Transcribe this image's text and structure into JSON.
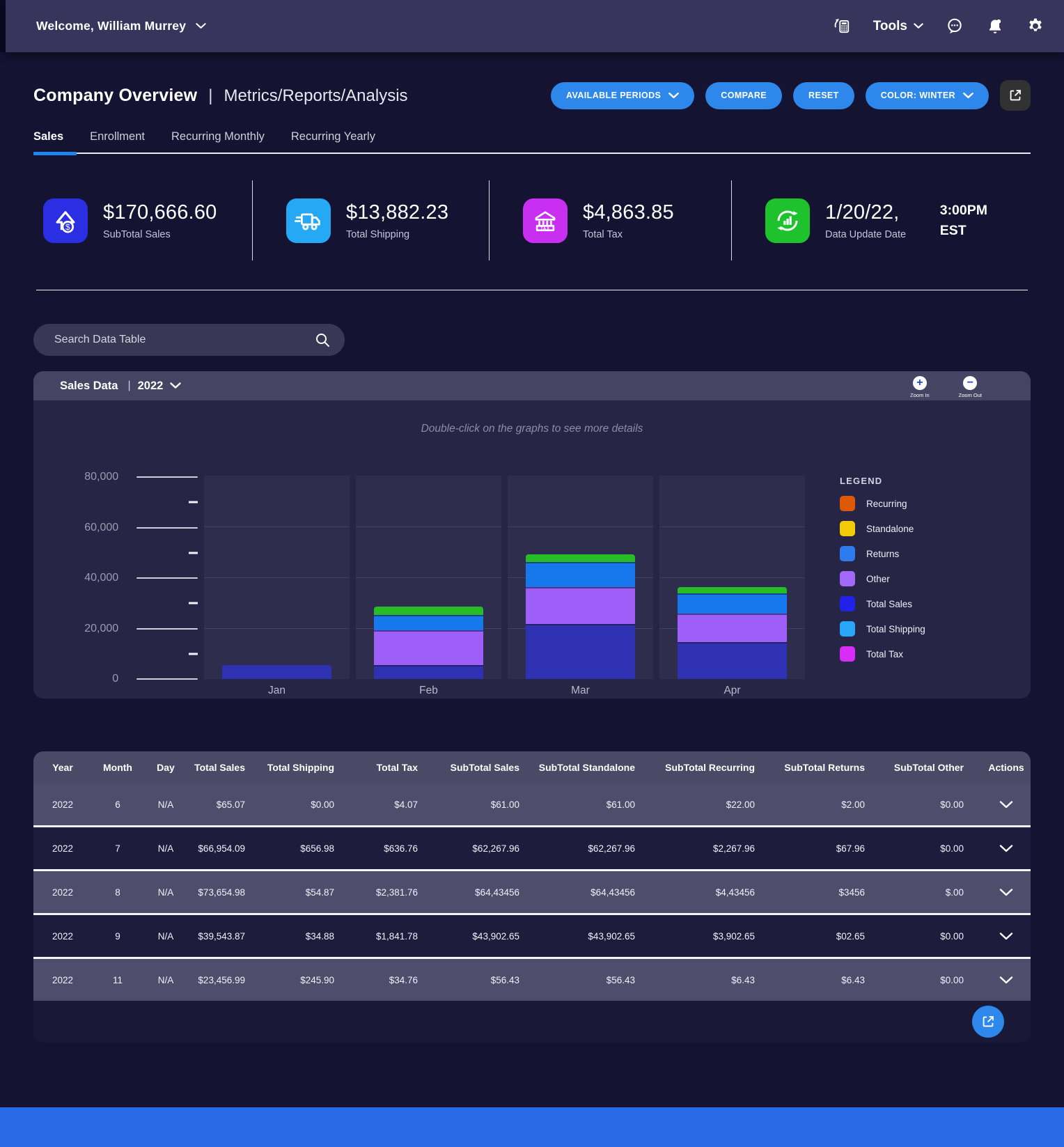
{
  "topbar": {
    "welcome": "Welcome, William Murrey",
    "tools_label": "Tools"
  },
  "header": {
    "title": "Company Overview",
    "divider": "|",
    "subtitle": "Metrics/Reports/Analysis",
    "buttons": {
      "available_periods": "AVAILABLE PERIODS",
      "compare": "COMPARE",
      "reset": "RESET",
      "color": "COLOR: WINTER"
    }
  },
  "tabs": [
    {
      "label": "Sales",
      "active": true
    },
    {
      "label": "Enrollment",
      "active": false
    },
    {
      "label": "Recurring Monthly",
      "active": false
    },
    {
      "label": "Recurring Yearly",
      "active": false
    }
  ],
  "stats": [
    {
      "value": "$170,666.60",
      "label": "SubTotal Sales",
      "icon": "sales-up-icon",
      "color": "#2b2fe4"
    },
    {
      "value": "$13,882.23",
      "label": "Total Shipping",
      "icon": "shipping-truck-icon",
      "color": "#25a9f4"
    },
    {
      "value": "$4,863.85",
      "label": "Total Tax",
      "icon": "tax-bank-icon",
      "color": "#c92ff0"
    },
    {
      "value": "1/20/22,",
      "label": "Data Update Date",
      "icon": "data-refresh-icon",
      "color": "#1ec22c",
      "side_time": "3:00PM",
      "side_zone": "EST"
    }
  ],
  "search": {
    "placeholder": "Search Data Table"
  },
  "chart_panel": {
    "title": "Sales Data",
    "divider": "|",
    "year": "2022",
    "zoom_in_label": "Zoom In",
    "zoom_out_label": "Zoom Out",
    "hint": "Double-click on the graphs to see more details"
  },
  "chart_data": {
    "type": "bar",
    "stacked": true,
    "title": "Sales Data 2022",
    "categories": [
      "Jan",
      "Feb",
      "Mar",
      "Apr"
    ],
    "series": [
      {
        "name": "dark-blue-bottom",
        "color": "#2d31b2",
        "values": [
          5500,
          5500,
          21800,
          14500
        ]
      },
      {
        "name": "purple",
        "color": "#9e5ef8",
        "values": [
          0,
          13700,
          14500,
          11500
        ]
      },
      {
        "name": "blue",
        "color": "#1778ee",
        "values": [
          0,
          6300,
          10000,
          8000
        ]
      },
      {
        "name": "green-top",
        "color": "#27bd27",
        "values": [
          0,
          3200,
          3200,
          2500
        ]
      }
    ],
    "ylim": [
      0,
      80000
    ],
    "ytick_labels_top_to_bottom": [
      "80,000",
      "60,000",
      "40,000",
      "20,000",
      "0"
    ],
    "grid": true,
    "legend_position": "right"
  },
  "legend": {
    "title": "LEGEND",
    "items": [
      {
        "label": "Recurring",
        "color": "#dd5906"
      },
      {
        "label": "Standalone",
        "color": "#f2cc0b"
      },
      {
        "label": "Returns",
        "color": "#2e7bed"
      },
      {
        "label": "Other",
        "color": "#a268f8"
      },
      {
        "label": "Total Sales",
        "color": "#2121ea"
      },
      {
        "label": "Total Shipping",
        "color": "#2aa6f8"
      },
      {
        "label": "Total Tax",
        "color": "#d82df5"
      }
    ]
  },
  "table": {
    "headers": [
      "Year",
      "Month",
      "Day",
      "Total Sales",
      "Total Shipping",
      "Total Tax",
      "SubTotal Sales",
      "SubTotal Standalone",
      "SubTotal Recurring",
      "SubTotal Returns",
      "SubTotal Other",
      "Actions"
    ],
    "rows": [
      [
        "2022",
        "6",
        "N/A",
        "$65.07",
        "$0.00",
        "$4.07",
        "$61.00",
        "$61.00",
        "$22.00",
        "$2.00",
        "$0.00"
      ],
      [
        "2022",
        "7",
        "N/A",
        "$66,954.09",
        "$656.98",
        "$636.76",
        "$62,267.96",
        "$62,267.96",
        "$2,267.96",
        "$67.96",
        "$0.00"
      ],
      [
        "2022",
        "8",
        "N/A",
        "$73,654.98",
        "$54.87",
        "$2,381.76",
        "$64,43456",
        "$64,43456",
        "$4,43456",
        "$3456",
        "$.00"
      ],
      [
        "2022",
        "9",
        "N/A",
        "$39,543.87",
        "$34.88",
        "$1,841.78",
        "$43,902.65",
        "$43,902.65",
        "$3,902.65",
        "$02.65",
        "$0.00"
      ],
      [
        "2022",
        "11",
        "N/A",
        "$23,456.99",
        "$245.90",
        "$34.76",
        "$56.43",
        "$56.43",
        "$6.43",
        "$6.43",
        "$0.00"
      ]
    ]
  },
  "theme": {
    "accent_blue": "#2e87ea",
    "tab_underline_blue": "#1d86f0",
    "topbar_bg": "#37355c",
    "page_bg": "#141331",
    "panel_bg": "#262545",
    "footer_bar_blue": "#2a6ae6"
  }
}
